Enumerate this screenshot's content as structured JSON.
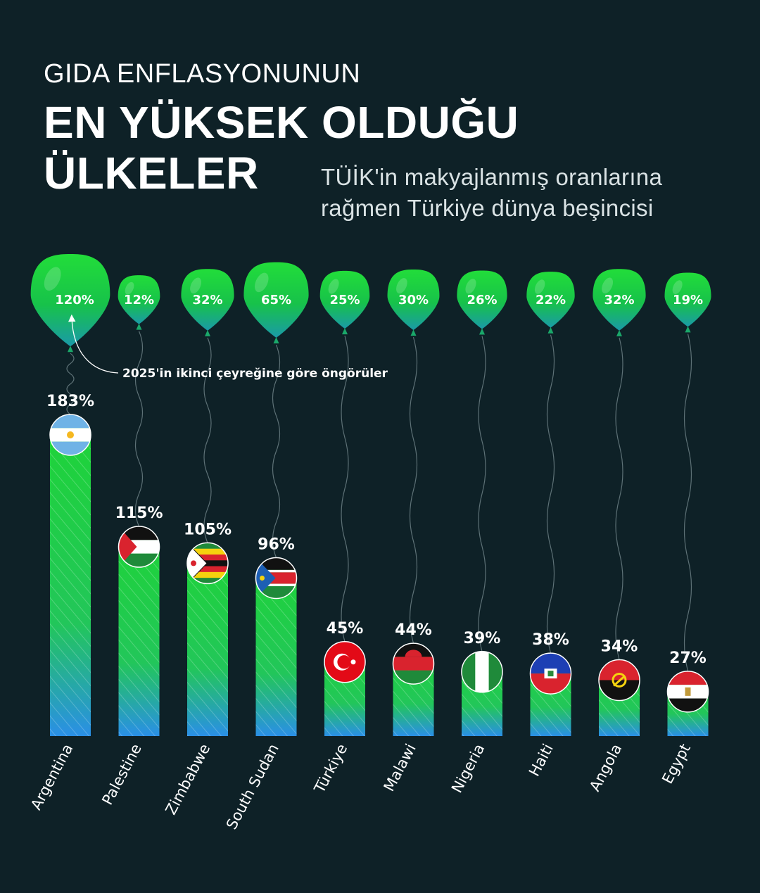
{
  "title": {
    "line1": "GIDA ENFLASYONUNUN",
    "line2": "EN YÜKSEK OLDUĞU",
    "line3": "ÜLKELER"
  },
  "subtitle": {
    "line1": "TÜİK'in makyajlanmış oranlarına",
    "line2": "rağmen Türkiye dünya beşincisi"
  },
  "colors": {
    "background": "#0e2127",
    "bar_top": "#1ed436",
    "bar_bottom": "#2a8fe6",
    "balloon_top": "#22dd3a",
    "balloon_bottom": "#1a9aa8"
  },
  "chart_data": {
    "type": "bar",
    "categories": [
      "Argentina",
      "Palestine",
      "Zimbabwe",
      "South Sudan",
      "Türkiye",
      "Malawi",
      "Nigeria",
      "Haiti",
      "Angola",
      "Egypt"
    ],
    "series": [
      {
        "values": [
          183,
          115,
          105,
          96,
          45,
          44,
          39,
          38,
          34,
          27
        ],
        "labels": [
          "183%",
          "115%",
          "105%",
          "96%",
          "45%",
          "44%",
          "39%",
          "38%",
          "34%",
          "27%"
        ]
      },
      {
        "name": "2025'in ikinci çeyreğine göre öngörüler",
        "values": [
          120,
          12,
          32,
          65,
          25,
          30,
          26,
          22,
          32,
          19
        ],
        "labels": [
          "120%",
          "12%",
          "32%",
          "65%",
          "25%",
          "30%",
          "26%",
          "22%",
          "32%",
          "19%"
        ]
      }
    ],
    "flags": [
      "argentina",
      "palestine",
      "zimbabwe",
      "south-sudan",
      "turkiye",
      "malawi",
      "nigeria",
      "haiti",
      "angola",
      "egypt"
    ],
    "annotation": "2025'in ikinci çeyreğine göre öngörüler",
    "ylim": [
      0,
      183
    ]
  }
}
